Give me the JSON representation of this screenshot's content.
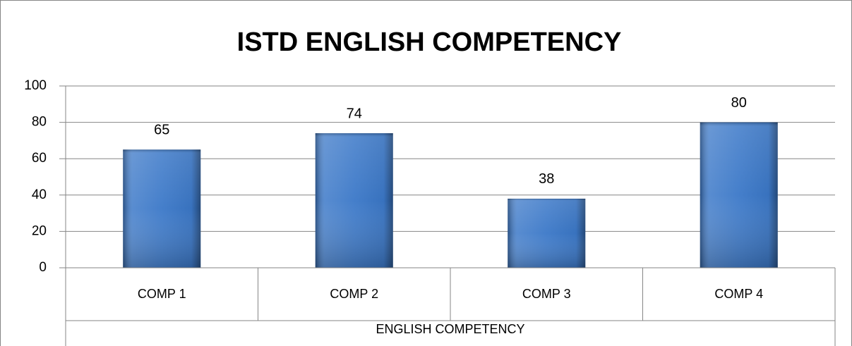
{
  "chart_data": {
    "type": "bar",
    "title": "ISTD ENGLISH COMPETENCY",
    "categories": [
      "COMP 1",
      "COMP 2",
      "COMP 3",
      "COMP 4"
    ],
    "values": [
      65,
      74,
      38,
      80
    ],
    "color": "#3b78c8",
    "xlabel": "ENGLISH COMPETENCY",
    "ylim": [
      0,
      100
    ],
    "yticks": [
      0,
      20,
      40,
      60,
      80,
      100
    ],
    "grid": true
  }
}
